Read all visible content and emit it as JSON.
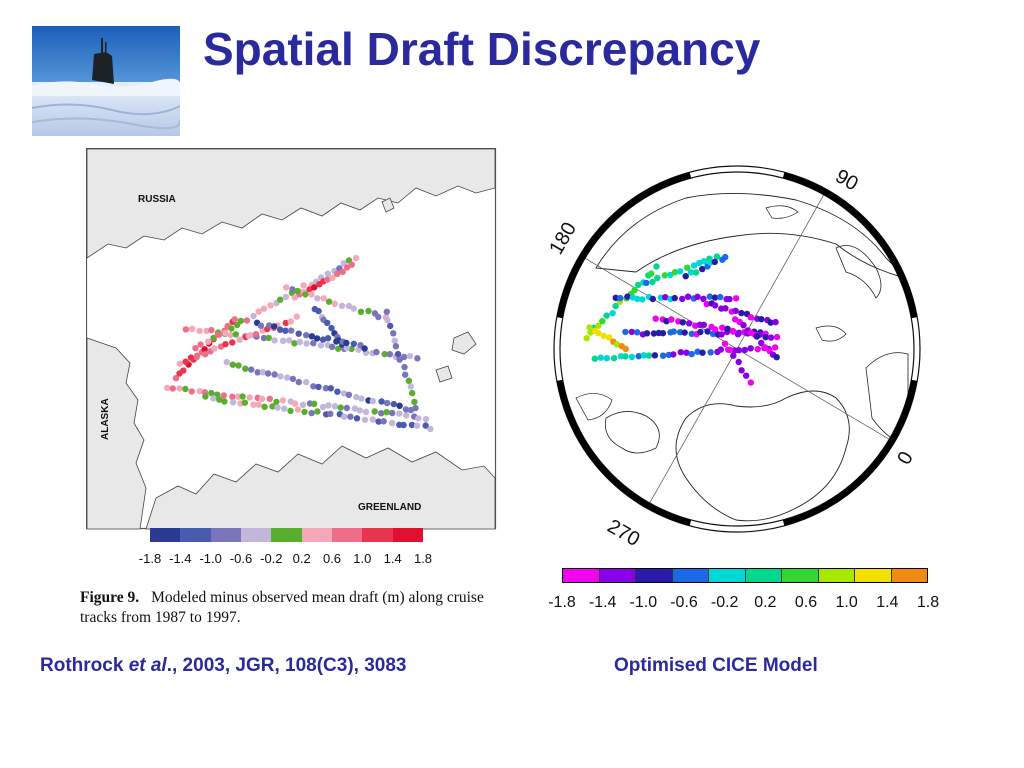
{
  "slide": {
    "title": "Spatial Draft Discrepancy"
  },
  "left_figure": {
    "labels": {
      "russia": "RUSSIA",
      "alaska": "ALASKA",
      "greenland": "GREENLAND"
    },
    "colorbar": {
      "colors": [
        "#2b3a93",
        "#4a5aae",
        "#7a74b8",
        "#c2b6da",
        "#5aae2e",
        "#f5a8b8",
        "#ef6f8a",
        "#e8344f",
        "#e01030"
      ],
      "ticks": [
        "-1.8",
        "-1.4",
        "-1.0",
        "-0.6",
        "-0.2",
        "0.2",
        "0.6",
        "1.0",
        "1.4",
        "1.8"
      ]
    },
    "caption": {
      "label": "Figure 9.",
      "text": "Modeled minus observed mean draft (m) along cruise tracks from 1987 to 1997."
    }
  },
  "right_figure": {
    "degree_labels": {
      "d90": "90",
      "d180": "180",
      "d270": "270",
      "d0": "0"
    },
    "colorbar": {
      "colors": [
        "#f200f2",
        "#8a00e6",
        "#2a1aa8",
        "#1a6ae6",
        "#00d8d8",
        "#00d890",
        "#30d830",
        "#a8e800",
        "#f2e000",
        "#f08a10"
      ],
      "ticks": [
        "-1.8",
        "-1.4",
        "-1.0",
        "-0.6",
        "-0.2",
        "0.2",
        "0.6",
        "1.0",
        "1.4",
        "1.8"
      ]
    }
  },
  "citations": {
    "left_author": "Rothrock",
    "left_etal": "et al",
    "left_rest": "., 2003, JGR, 108(C3), 3083",
    "right": "Optimised CICE Model"
  },
  "colors": {
    "title": "#2a2a9e",
    "citation": "#2a2a9e"
  }
}
